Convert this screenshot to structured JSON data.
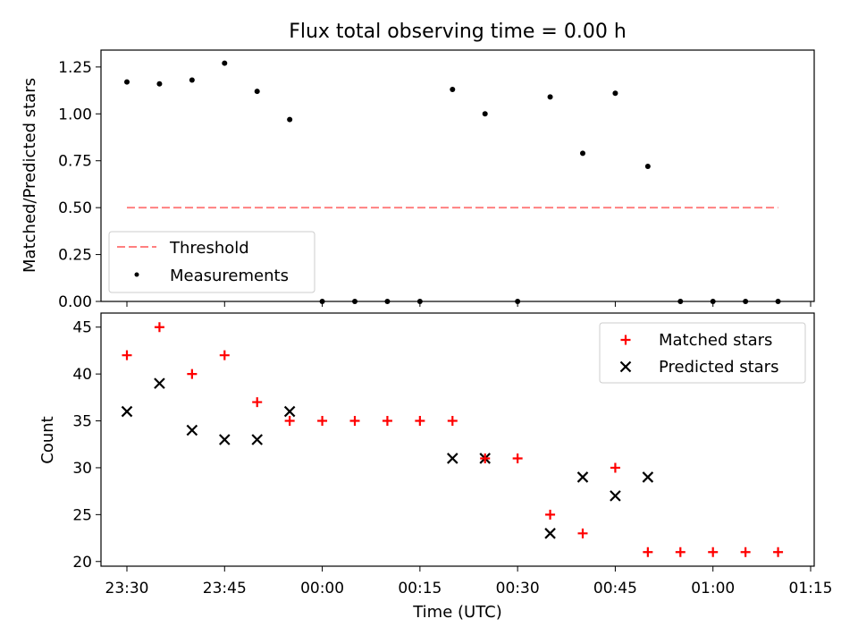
{
  "chart_data": [
    {
      "type": "scatter",
      "title": "Flux total observing time = 0.00 h",
      "xlabel": "",
      "ylabel": "Matched/Predicted stars",
      "ylim": [
        0,
        1.34
      ],
      "yticks": [
        "0.00",
        "0.25",
        "0.50",
        "0.75",
        "1.00",
        "1.25"
      ],
      "legend_position": "lower-left",
      "threshold": {
        "name": "Threshold",
        "value": 0.5,
        "x_start": "23:30",
        "x_end": "01:10",
        "color": "#ff8080"
      },
      "series": [
        {
          "name": "Measurements",
          "marker": "dot",
          "color": "#000000",
          "x": [
            "23:30",
            "23:35",
            "23:40",
            "23:45",
            "23:50",
            "23:55",
            "00:00",
            "00:05",
            "00:10",
            "00:15",
            "00:20",
            "00:25",
            "00:30",
            "00:35",
            "00:40",
            "00:45",
            "00:50",
            "00:55",
            "01:00",
            "01:05",
            "01:10"
          ],
          "values": [
            1.17,
            1.16,
            1.18,
            1.27,
            1.12,
            0.97,
            0.0,
            0.0,
            0.0,
            0.0,
            1.13,
            1.0,
            0.0,
            1.09,
            0.79,
            1.11,
            0.72,
            0.0,
            0.0,
            0.0,
            0.0
          ]
        }
      ]
    },
    {
      "type": "scatter",
      "title": "",
      "xlabel": "Time (UTC)",
      "ylabel": "Count",
      "ylim": [
        19.5,
        46.5
      ],
      "yticks": [
        "20",
        "25",
        "30",
        "35",
        "40",
        "45"
      ],
      "xticks": [
        "23:30",
        "23:45",
        "00:00",
        "00:15",
        "00:30",
        "00:45",
        "01:00",
        "01:15"
      ],
      "legend_position": "top-right",
      "series": [
        {
          "name": "Matched stars",
          "marker": "plus",
          "color": "#ff0000",
          "x": [
            "23:30",
            "23:35",
            "23:40",
            "23:45",
            "23:50",
            "23:55",
            "00:00",
            "00:05",
            "00:10",
            "00:15",
            "00:20",
            "00:25",
            "00:30",
            "00:35",
            "00:40",
            "00:45",
            "00:50",
            "00:55",
            "01:00",
            "01:05",
            "01:10"
          ],
          "values": [
            42,
            45,
            40,
            42,
            37,
            35,
            35,
            35,
            35,
            35,
            35,
            31,
            31,
            25,
            23,
            30,
            21,
            21,
            21,
            21,
            21
          ]
        },
        {
          "name": "Predicted stars",
          "marker": "x",
          "color": "#000000",
          "x": [
            "23:30",
            "23:35",
            "23:40",
            "23:45",
            "23:50",
            "23:55",
            "00:20",
            "00:25",
            "00:35",
            "00:40",
            "00:45",
            "00:50"
          ],
          "values": [
            36,
            39,
            34,
            33,
            33,
            36,
            31,
            31,
            23,
            29,
            27,
            29
          ]
        }
      ]
    }
  ]
}
